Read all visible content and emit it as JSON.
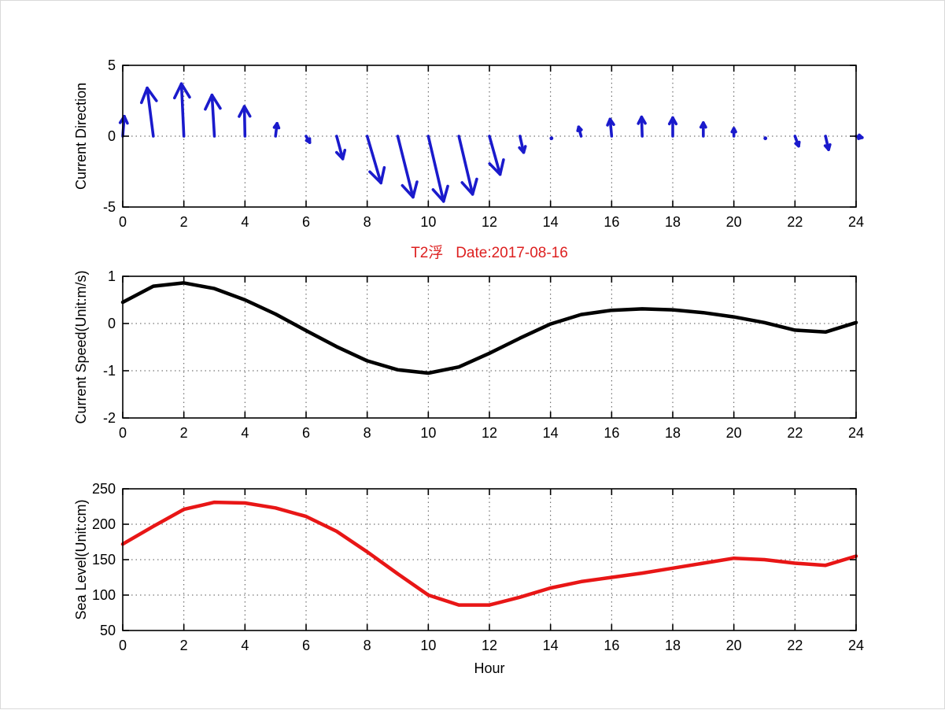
{
  "figure": {
    "background": "#ffffff",
    "frame_color": "#d9d9d9"
  },
  "chart_data": [
    {
      "type": "quiver",
      "name": "current-direction",
      "ylabel": "Current Direction",
      "xlim": [
        0,
        24
      ],
      "ylim": [
        -5,
        5
      ],
      "xticks": [
        0,
        2,
        4,
        6,
        8,
        10,
        12,
        14,
        16,
        18,
        20,
        22,
        24
      ],
      "yticks": [
        5,
        0,
        -5
      ],
      "grid": true,
      "color": "#1a1acc",
      "x": [
        0,
        1,
        2,
        3,
        4,
        5,
        6,
        7,
        8,
        9,
        10,
        11,
        12,
        13,
        14,
        15,
        16,
        17,
        18,
        19,
        20,
        21,
        22,
        23,
        24
      ],
      "u": [
        0.05,
        -0.2,
        -0.08,
        -0.08,
        -0.02,
        0.05,
        0.12,
        0.2,
        0.45,
        0.5,
        0.5,
        0.45,
        0.35,
        0.12,
        0.03,
        -0.08,
        -0.05,
        -0.02,
        0,
        0,
        0,
        0.03,
        0.12,
        0.1,
        0.2
      ],
      "v": [
        1.4,
        3.4,
        3.7,
        2.9,
        2.1,
        0.9,
        -0.45,
        -1.6,
        -3.3,
        -4.3,
        -4.6,
        -4.1,
        -2.7,
        -1.15,
        -0.15,
        0.65,
        1.2,
        1.35,
        1.3,
        0.95,
        0.55,
        -0.15,
        -0.7,
        -0.95,
        -0.1
      ]
    },
    {
      "type": "line",
      "name": "current-speed",
      "title": "T2浮   Date:2017-08-16",
      "title_color": "#dd2020",
      "ylabel": "Current Speed(Unit:m/s)",
      "xlim": [
        0,
        24
      ],
      "ylim": [
        -2,
        1
      ],
      "xticks": [
        0,
        2,
        4,
        6,
        8,
        10,
        12,
        14,
        16,
        18,
        20,
        22,
        24
      ],
      "yticks": [
        1,
        0,
        -1,
        -2
      ],
      "grid": true,
      "color": "#000000",
      "x": [
        0,
        1,
        2,
        3,
        4,
        5,
        6,
        7,
        8,
        9,
        10,
        11,
        12,
        13,
        14,
        15,
        16,
        17,
        18,
        19,
        20,
        21,
        22,
        23,
        24
      ],
      "values": [
        0.45,
        0.79,
        0.86,
        0.74,
        0.5,
        0.2,
        -0.15,
        -0.49,
        -0.79,
        -0.98,
        -1.05,
        -0.92,
        -0.63,
        -0.31,
        -0.01,
        0.19,
        0.28,
        0.31,
        0.29,
        0.23,
        0.14,
        0.02,
        -0.14,
        -0.18,
        0.02
      ]
    },
    {
      "type": "line",
      "name": "sea-level",
      "ylabel": "Sea Level(Unit:cm)",
      "xlabel": "Hour",
      "xlim": [
        0,
        24
      ],
      "ylim": [
        50,
        250
      ],
      "xticks": [
        0,
        2,
        4,
        6,
        8,
        10,
        12,
        14,
        16,
        18,
        20,
        22,
        24
      ],
      "yticks": [
        250,
        200,
        150,
        100,
        50
      ],
      "grid": true,
      "color": "#e81616",
      "x": [
        0,
        1,
        2,
        3,
        4,
        5,
        6,
        7,
        8,
        9,
        10,
        11,
        12,
        13,
        14,
        15,
        16,
        17,
        18,
        19,
        20,
        21,
        22,
        23,
        24
      ],
      "values": [
        172,
        197,
        221,
        231,
        230,
        223,
        211,
        190,
        161,
        130,
        100,
        86,
        86,
        97,
        110,
        119,
        125,
        131,
        138,
        145,
        152,
        150,
        145,
        142,
        155
      ]
    }
  ]
}
